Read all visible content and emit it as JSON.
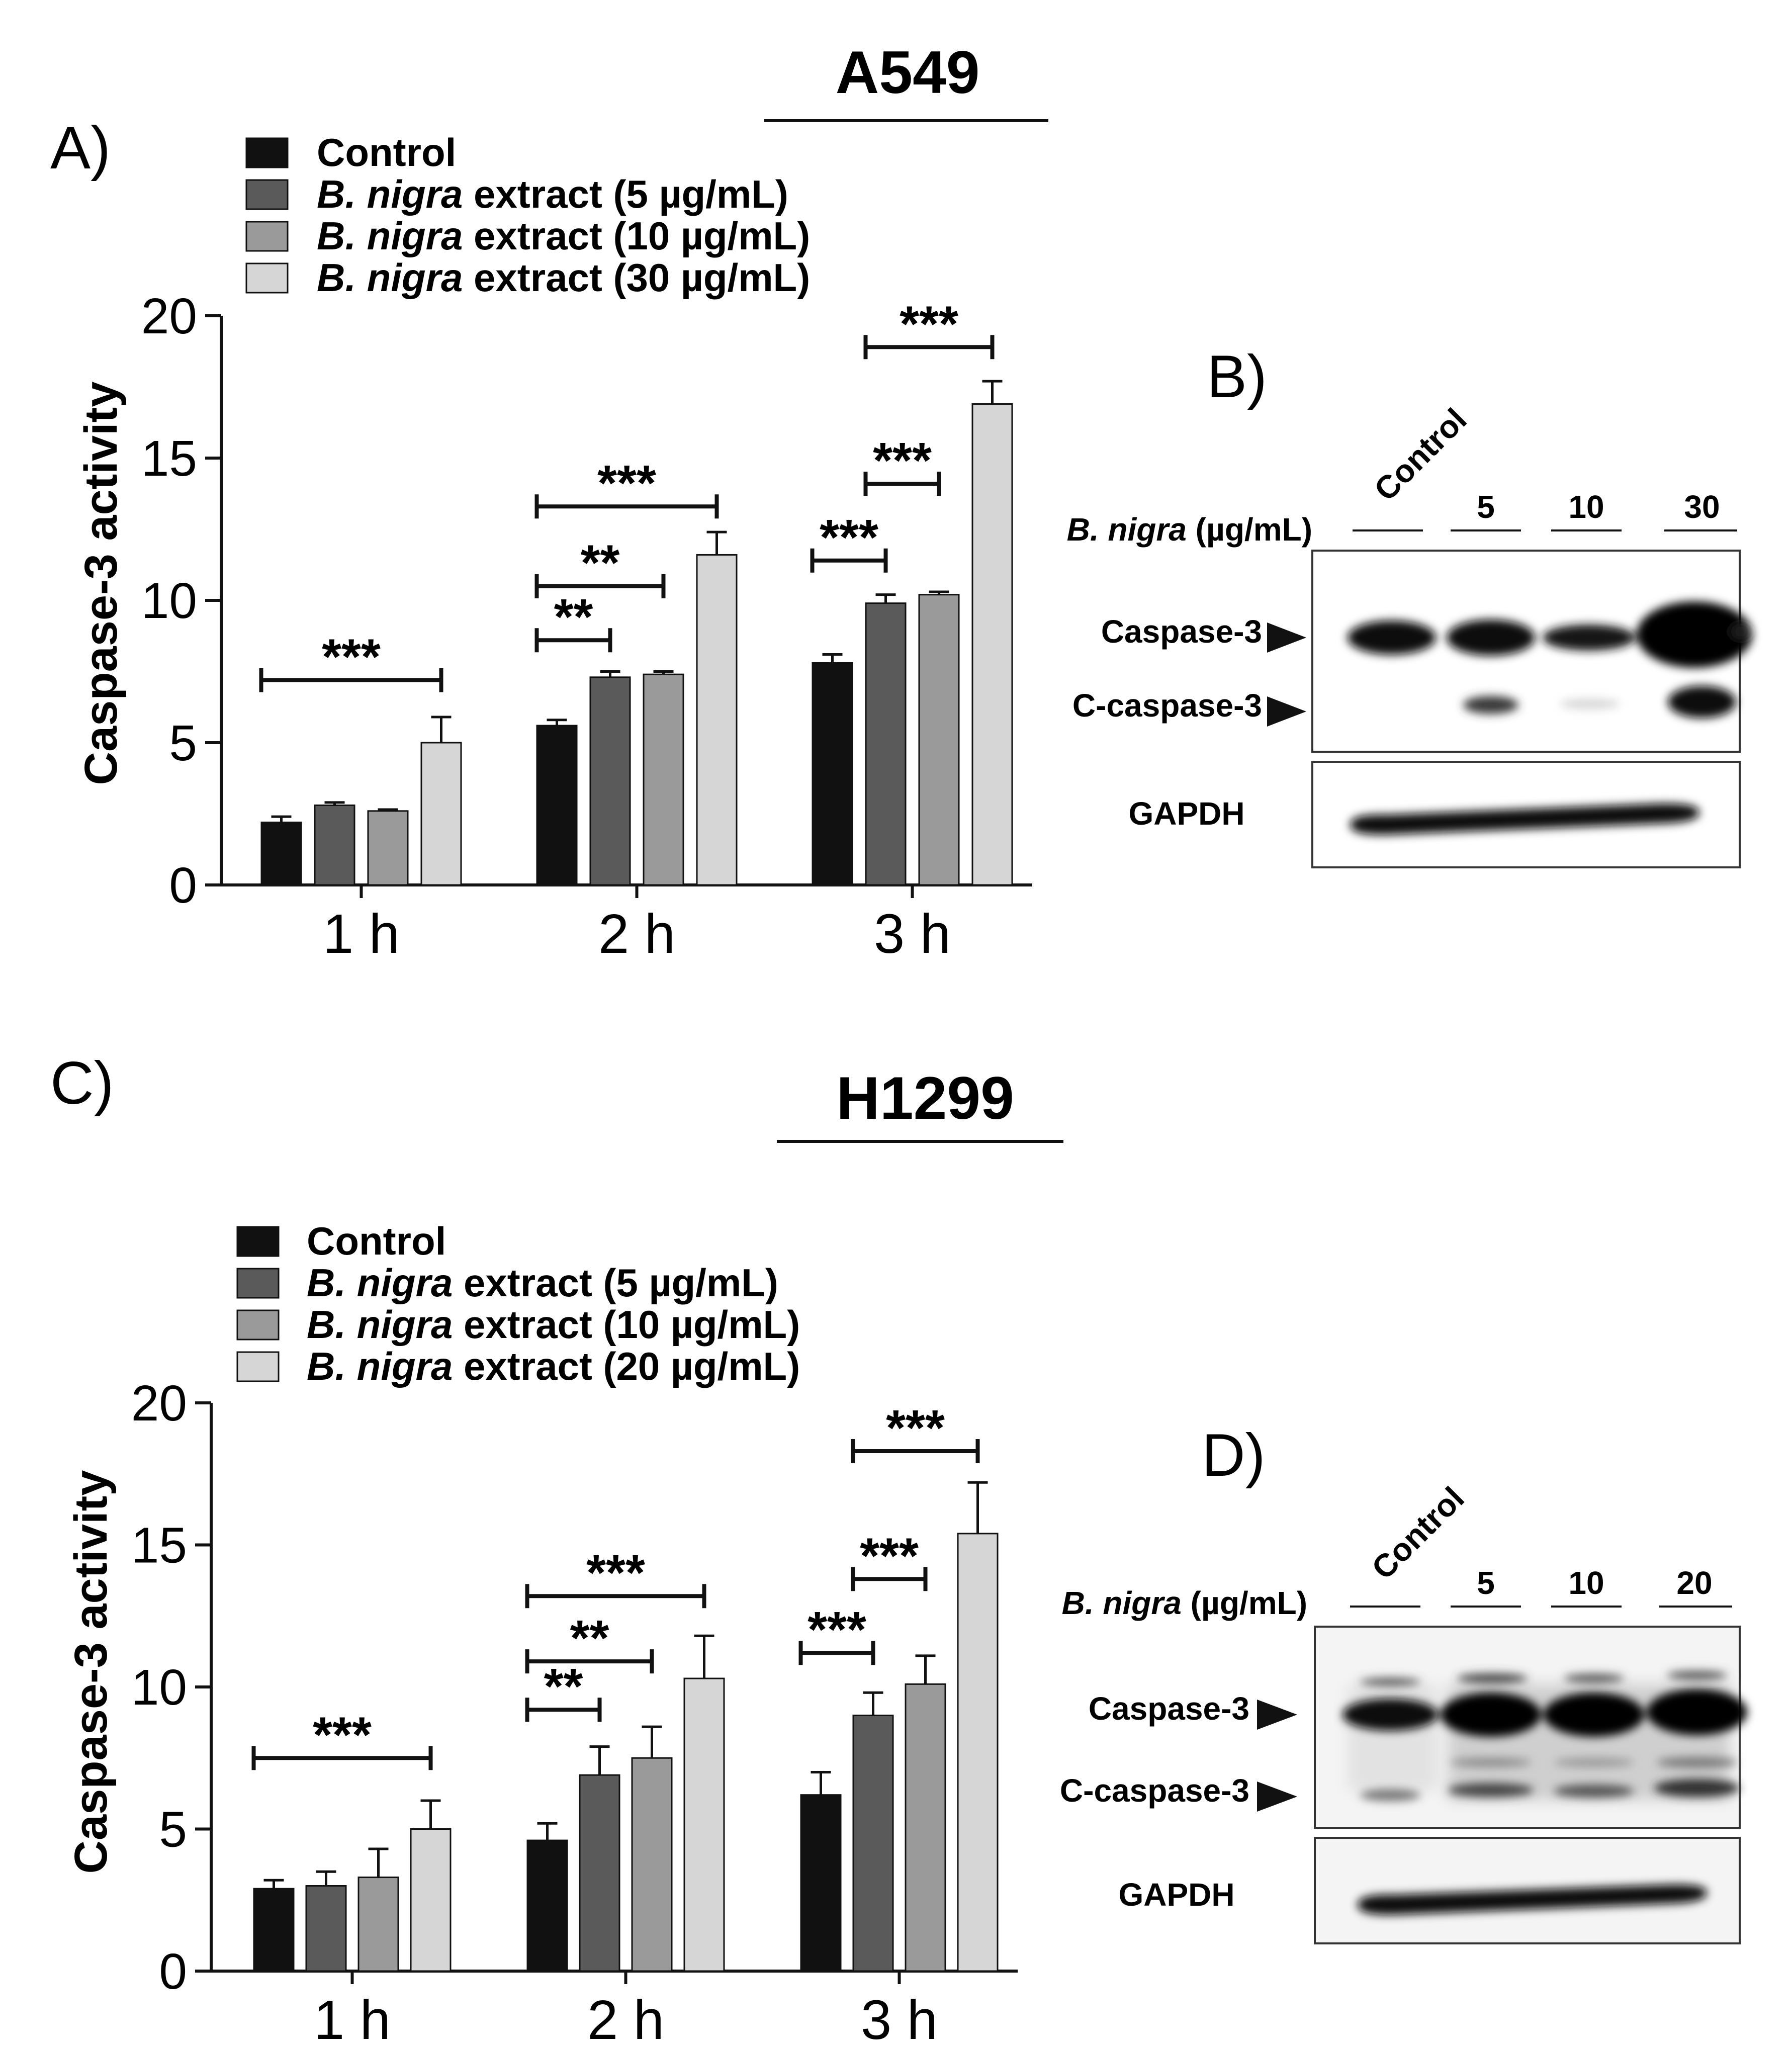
{
  "panels": {
    "a": {
      "label": "A)",
      "cell_line": "A549"
    },
    "b": {
      "label": "B)"
    },
    "c": {
      "label": "C)",
      "cell_line": "H1299"
    },
    "d": {
      "label": "D)"
    }
  },
  "colors": {
    "control": "#111111",
    "dose_low": "#5a5a5a",
    "dose_mid": "#9a9a9a",
    "dose_high": "#d6d6d6"
  },
  "chart_data": [
    {
      "type": "bar",
      "panel": "A",
      "ylabel": "Caspase-3 activity",
      "ylim": [
        0,
        20
      ],
      "yticks": [
        0,
        5,
        10,
        15,
        20
      ],
      "categories": [
        "1 h",
        "2 h",
        "3 h"
      ],
      "legend": {
        "placement": "top-left",
        "entries": [
          {
            "italic": "",
            "text": "Control"
          },
          {
            "italic": "B. nigra",
            "text": " extract (5 µg/mL)"
          },
          {
            "italic": "B. nigra",
            "text": " extract (10 µg/mL)"
          },
          {
            "italic": "B. nigra",
            "text": " extract (30 µg/mL)"
          }
        ]
      },
      "series": [
        {
          "values": [
            2.2,
            5.6,
            7.8
          ],
          "errors": [
            0.2,
            0.2,
            0.3
          ]
        },
        {
          "values": [
            2.8,
            7.3,
            9.9
          ],
          "errors": [
            0.1,
            0.2,
            0.3
          ]
        },
        {
          "values": [
            2.6,
            7.4,
            10.2
          ],
          "errors": [
            0.05,
            0.1,
            0.1
          ]
        },
        {
          "values": [
            5.0,
            11.6,
            16.9
          ],
          "errors": [
            0.9,
            0.8,
            0.8
          ]
        }
      ],
      "significance": [
        {
          "category": 0,
          "from": 0,
          "to": 3,
          "stars": "***",
          "y": 7.2
        },
        {
          "category": 1,
          "from": 0,
          "to": 1,
          "stars": "**",
          "y": 8.6
        },
        {
          "category": 1,
          "from": 0,
          "to": 2,
          "stars": "**",
          "y": 10.5
        },
        {
          "category": 1,
          "from": 0,
          "to": 3,
          "stars": "***",
          "y": 13.3
        },
        {
          "category": 2,
          "from": 0,
          "to": 1,
          "stars": "***",
          "y": 11.4
        },
        {
          "category": 2,
          "from": 1,
          "to": 2,
          "stars": "***",
          "y": 14.1
        },
        {
          "category": 2,
          "from": 1,
          "to": 3,
          "stars": "***",
          "y": 18.9
        }
      ]
    },
    {
      "type": "bar",
      "panel": "C",
      "ylabel": "Caspase-3 activity",
      "ylim": [
        0,
        20
      ],
      "yticks": [
        0,
        5,
        10,
        15,
        20
      ],
      "categories": [
        "1 h",
        "2 h",
        "3 h"
      ],
      "legend": {
        "placement": "top-left",
        "entries": [
          {
            "italic": "",
            "text": "Control"
          },
          {
            "italic": "B. nigra",
            "text": " extract (5 µg/mL)"
          },
          {
            "italic": "B. nigra",
            "text": " extract (10 µg/mL)"
          },
          {
            "italic": "B. nigra",
            "text": " extract (20 µg/mL)"
          }
        ]
      },
      "series": [
        {
          "values": [
            2.9,
            4.6,
            6.2
          ],
          "errors": [
            0.3,
            0.6,
            0.8
          ]
        },
        {
          "values": [
            3.0,
            6.9,
            9.0
          ],
          "errors": [
            0.5,
            1.0,
            0.8
          ]
        },
        {
          "values": [
            3.3,
            7.5,
            10.1
          ],
          "errors": [
            1.0,
            1.1,
            1.0
          ]
        },
        {
          "values": [
            5.0,
            10.3,
            15.4
          ],
          "errors": [
            1.0,
            1.5,
            1.8
          ]
        }
      ],
      "significance": [
        {
          "category": 0,
          "from": 0,
          "to": 3,
          "stars": "***",
          "y": 7.5
        },
        {
          "category": 1,
          "from": 0,
          "to": 1,
          "stars": "**",
          "y": 9.2
        },
        {
          "category": 1,
          "from": 0,
          "to": 2,
          "stars": "**",
          "y": 10.9
        },
        {
          "category": 1,
          "from": 0,
          "to": 3,
          "stars": "***",
          "y": 13.2
        },
        {
          "category": 2,
          "from": 0,
          "to": 1,
          "stars": "***",
          "y": 11.2
        },
        {
          "category": 2,
          "from": 1,
          "to": 2,
          "stars": "***",
          "y": 13.8
        },
        {
          "category": 2,
          "from": 1,
          "to": 3,
          "stars": "***",
          "y": 18.3
        }
      ]
    }
  ],
  "blots": {
    "b": {
      "dose_label_italic": "B. nigra",
      "dose_label_rest": " (µg/mL)",
      "lanes": [
        "Control",
        "5",
        "10",
        "30"
      ],
      "rows": [
        "Caspase-3",
        "C-caspase-3",
        "GAPDH"
      ]
    },
    "d": {
      "dose_label_italic": "B. nigra",
      "dose_label_rest": " (µg/mL)",
      "lanes": [
        "Control",
        "5",
        "10",
        "20"
      ],
      "rows": [
        "Caspase-3",
        "C-caspase-3",
        "GAPDH"
      ]
    }
  }
}
